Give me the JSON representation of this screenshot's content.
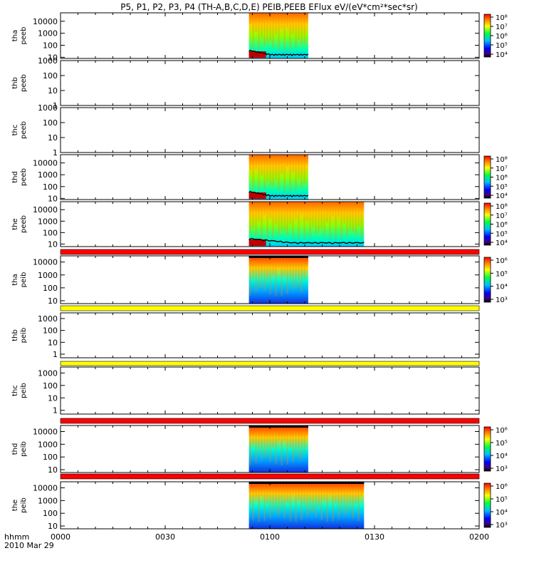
{
  "chart_data": {
    "type": "heatmap",
    "title": "P5, P1, P2, P3, P4 (TH-A,B,C,D,E) PEIB,PEEB EFlux eV/(eV*cm²*sec*sr)",
    "xlabel": "hhmm",
    "date_label": "2010 Mar 29",
    "x_ticks": [
      "0000",
      "0030",
      "0100",
      "0130",
      "0200"
    ],
    "x_range": [
      "00:00",
      "02:00"
    ],
    "y_scale": "log",
    "panels": [
      {
        "probe": "tha",
        "product": "peeb",
        "ylim": [
          8,
          50000
        ],
        "y_ticks": [
          "10",
          "100",
          "1000",
          "10000"
        ],
        "data": [
          [
            "00:54",
            "01:11"
          ]
        ],
        "colorbar": [
          "10⁴",
          "10⁵",
          "10⁶",
          "10⁷",
          "10⁸"
        ]
      },
      {
        "probe": "thb",
        "product": "peeb",
        "ylim": [
          1,
          1000
        ],
        "y_ticks": [
          "1",
          "10",
          "100",
          "1000"
        ],
        "data": []
      },
      {
        "probe": "thc",
        "product": "peeb",
        "ylim": [
          1,
          1000
        ],
        "y_ticks": [
          "1",
          "10",
          "100",
          "1000"
        ],
        "data": []
      },
      {
        "probe": "thd",
        "product": "peeb",
        "ylim": [
          8,
          50000
        ],
        "y_ticks": [
          "10",
          "100",
          "1000",
          "10000"
        ],
        "data": [
          [
            "00:54",
            "01:11"
          ]
        ],
        "colorbar": [
          "10⁴",
          "10⁵",
          "10⁶",
          "10⁷",
          "10⁸"
        ]
      },
      {
        "probe": "the",
        "product": "peeb",
        "ylim": [
          6,
          50000
        ],
        "y_ticks": [
          "10",
          "100",
          "1000",
          "10000"
        ],
        "data": [
          [
            "00:54",
            "01:27"
          ]
        ],
        "colorbar": [
          "10⁴",
          "10⁵",
          "10⁶",
          "10⁷",
          "10⁸"
        ]
      },
      {
        "probe": "tha",
        "product": "peib",
        "ylim": [
          6,
          30000
        ],
        "y_ticks": [
          "10",
          "100",
          "1000",
          "10000"
        ],
        "data": [
          [
            "00:54",
            "01:11"
          ]
        ],
        "colorbar": [
          "10³",
          "10⁴",
          "10⁵",
          "10⁶"
        ]
      },
      {
        "probe": "thb",
        "product": "peib",
        "ylim": [
          0.5,
          3000
        ],
        "y_ticks": [
          "1",
          "10",
          "100",
          "1000"
        ],
        "data": []
      },
      {
        "probe": "thc",
        "product": "peib",
        "ylim": [
          0.5,
          3000
        ],
        "y_ticks": [
          "1",
          "10",
          "100",
          "1000"
        ],
        "data": []
      },
      {
        "probe": "thd",
        "product": "peib",
        "ylim": [
          6,
          30000
        ],
        "y_ticks": [
          "10",
          "100",
          "1000",
          "10000"
        ],
        "data": [
          [
            "00:54",
            "01:11"
          ]
        ],
        "colorbar": [
          "10³",
          "10⁴",
          "10⁵",
          "10⁶"
        ]
      },
      {
        "probe": "the",
        "product": "peib",
        "ylim": [
          6,
          30000
        ],
        "y_ticks": [
          "10",
          "100",
          "1000",
          "10000"
        ],
        "data": [
          [
            "00:54",
            "01:27"
          ]
        ],
        "colorbar": [
          "10³",
          "10⁴",
          "10⁵",
          "10⁶"
        ]
      }
    ],
    "colors": {
      "red_bar": "#ff0000",
      "yellow_bar": "#ffff00"
    }
  }
}
